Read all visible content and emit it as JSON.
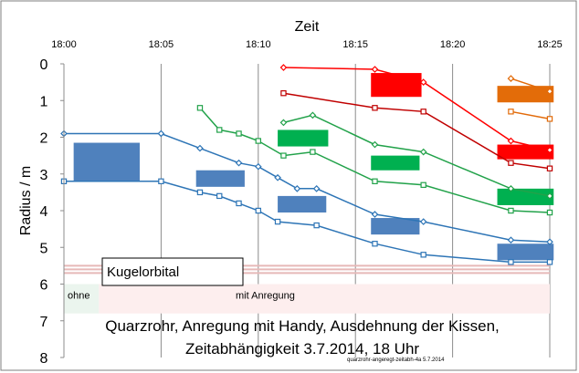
{
  "chart_data": {
    "type": "line",
    "x_axis_title": "Zeit",
    "y_axis_title": "Radius / m",
    "x_ticks": [
      "18:00",
      "18:05",
      "18:10",
      "18:15",
      "18:20",
      "18:25"
    ],
    "x_range_minutes": [
      0,
      25
    ],
    "y_ticks": [
      "0",
      "1",
      "2",
      "3",
      "4",
      "5",
      "6",
      "7",
      "8"
    ],
    "ylim": [
      0,
      8
    ],
    "y_inverted": true,
    "grid": "vertical lines at x ticks",
    "series": [
      {
        "name": "blue-diamond",
        "color": "#2e75b6",
        "marker": "diamond",
        "x": [
          0,
          5,
          7,
          9,
          10,
          11,
          12,
          13,
          16,
          18.5,
          23,
          25
        ],
        "y": [
          1.9,
          1.9,
          2.3,
          2.7,
          2.8,
          3.1,
          3.4,
          3.4,
          4.1,
          4.3,
          4.8,
          4.85
        ]
      },
      {
        "name": "blue-square",
        "color": "#2e75b6",
        "marker": "square",
        "x": [
          0,
          5,
          7,
          8,
          9,
          10,
          11,
          13,
          16,
          18.5,
          23,
          25
        ],
        "y": [
          3.2,
          3.2,
          3.5,
          3.6,
          3.8,
          4.0,
          4.3,
          4.4,
          4.9,
          5.2,
          5.4,
          5.4
        ]
      },
      {
        "name": "green-diamond",
        "color": "#22a24a",
        "marker": "diamond",
        "x": [
          11.3,
          12.8,
          16,
          18.5,
          23,
          25
        ],
        "y": [
          1.6,
          1.4,
          2.2,
          2.4,
          3.4,
          3.6
        ]
      },
      {
        "name": "green-square",
        "color": "#22a24a",
        "marker": "square",
        "x": [
          7,
          8,
          9,
          10,
          11.3,
          12.8,
          16,
          18.5,
          23,
          25
        ],
        "y": [
          1.2,
          1.8,
          1.9,
          2.1,
          2.5,
          2.4,
          3.2,
          3.3,
          4.0,
          4.05
        ]
      },
      {
        "name": "red-diamond",
        "color": "#ff0000",
        "marker": "diamond",
        "x": [
          11.3,
          16,
          18.5,
          23,
          25
        ],
        "y": [
          0.1,
          0.15,
          0.5,
          2.1,
          2.35
        ]
      },
      {
        "name": "red-square",
        "color": "#c00000",
        "marker": "square",
        "x": [
          11.3,
          16,
          18.5,
          23,
          25
        ],
        "y": [
          0.8,
          1.2,
          1.3,
          2.7,
          2.85
        ]
      },
      {
        "name": "orange-diamond",
        "color": "#e26b0a",
        "marker": "diamond",
        "x": [
          23,
          25
        ],
        "y": [
          0.4,
          0.75
        ]
      },
      {
        "name": "orange-square",
        "color": "#e26b0a",
        "marker": "square",
        "x": [
          23,
          25
        ],
        "y": [
          1.3,
          1.5
        ]
      }
    ],
    "blocks": [
      {
        "name": "blue-block-1",
        "color": "#4f81bd",
        "x": [
          0.5,
          3.9
        ],
        "y": [
          2.15,
          3.2
        ]
      },
      {
        "name": "blue-block-2",
        "color": "#4f81bd",
        "x": [
          6.8,
          9.3
        ],
        "y": [
          2.9,
          3.35
        ]
      },
      {
        "name": "blue-block-3",
        "color": "#4f81bd",
        "x": [
          11,
          13.5
        ],
        "y": [
          3.6,
          4.05
        ]
      },
      {
        "name": "blue-block-4",
        "color": "#4f81bd",
        "x": [
          15.8,
          18.3
        ],
        "y": [
          4.2,
          4.65
        ]
      },
      {
        "name": "blue-block-5",
        "color": "#4f81bd",
        "x": [
          22.3,
          25.2
        ],
        "y": [
          4.9,
          5.35
        ]
      },
      {
        "name": "green-block-1",
        "color": "#00b050",
        "x": [
          11,
          13.6
        ],
        "y": [
          1.8,
          2.25
        ]
      },
      {
        "name": "green-block-2",
        "color": "#00b050",
        "x": [
          15.8,
          18.3
        ],
        "y": [
          2.5,
          2.9
        ]
      },
      {
        "name": "green-block-3",
        "color": "#00b050",
        "x": [
          22.3,
          25.2
        ],
        "y": [
          3.4,
          3.85
        ]
      },
      {
        "name": "red-block-1",
        "color": "#ff0000",
        "x": [
          15.8,
          18.4
        ],
        "y": [
          0.25,
          0.9
        ]
      },
      {
        "name": "red-block-2",
        "color": "#ff0000",
        "x": [
          22.3,
          25.2
        ],
        "y": [
          2.2,
          2.6
        ]
      },
      {
        "name": "orange-block-1",
        "color": "#e36c09",
        "x": [
          22.3,
          25.2
        ],
        "y": [
          0.6,
          1.05
        ]
      }
    ],
    "bands": [
      {
        "name": "ohne-band",
        "label": "ohne",
        "color": "#ebf5ee",
        "x": [
          0,
          1.8
        ],
        "y": [
          6.0,
          6.8
        ]
      },
      {
        "name": "anregung-band",
        "label": "mit  Anregung",
        "color": "#fdeeee",
        "x": [
          1.8,
          25
        ],
        "y": [
          6.0,
          6.8
        ]
      }
    ],
    "reference_lines": [
      5.5,
      5.6,
      5.7
    ],
    "legend_box": "Kugelorbital",
    "title": "Quarzrohr, Anregung mit Handy,  Ausdehnung der Kissen,",
    "subtitle": "Zeitabhängigkeit 3.7.2014, 18 Uhr",
    "footnote": "quarzrohr-angeregt-zeitabh-4a  5.7.2014"
  }
}
